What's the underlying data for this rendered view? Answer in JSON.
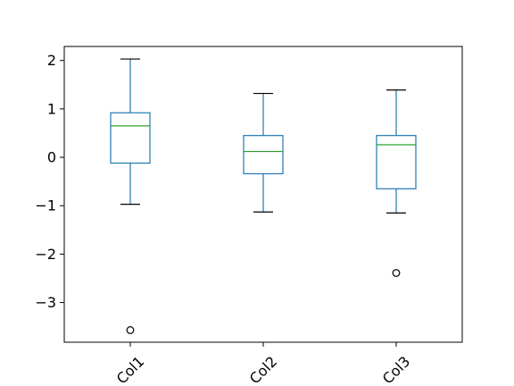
{
  "chart_data": {
    "type": "box",
    "categories": [
      "Col1",
      "Col2",
      "Col3"
    ],
    "series": [
      {
        "category": "Col1",
        "whisker_low": -0.97,
        "q1": -0.12,
        "median": 0.65,
        "q3": 0.92,
        "whisker_high": 2.03,
        "outliers": [
          -3.57
        ]
      },
      {
        "category": "Col2",
        "whisker_low": -1.13,
        "q1": -0.34,
        "median": 0.12,
        "q3": 0.45,
        "whisker_high": 1.32,
        "outliers": []
      },
      {
        "category": "Col3",
        "whisker_low": -1.15,
        "q1": -0.65,
        "median": 0.26,
        "q3": 0.45,
        "whisker_high": 1.39,
        "outliers": [
          -2.39
        ]
      }
    ],
    "yticks": [
      -3,
      -2,
      -1,
      0,
      1,
      2
    ],
    "ytick_labels": [
      "−3",
      "−2",
      "−1",
      "0",
      "1",
      "2"
    ],
    "ylim": [
      -3.82,
      2.29
    ],
    "xtick_rotation": 45,
    "grid": false,
    "colors": {
      "box": "#1f77b4",
      "whisker": "#1f77b4",
      "cap": "#000000",
      "median": "#2ca02c",
      "flier": "#000000"
    }
  }
}
